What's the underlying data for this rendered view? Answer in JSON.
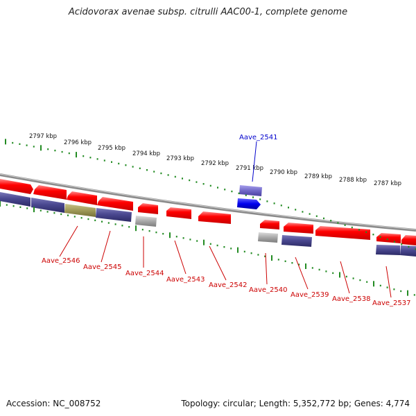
{
  "title": "Acidovorax avenae subsp. citrulli AAC00-1, complete genome",
  "footer": {
    "accession": "Accession: NC_008752",
    "topology": "Topology: circular; Length: 5,352,772 bp; Genes: 4,774"
  },
  "scale": {
    "unit": "kbp",
    "ticks": [
      "2797 kbp",
      "2796 kbp",
      "2795 kbp",
      "2794 kbp",
      "2793 kbp",
      "2792 kbp",
      "2791 kbp",
      "2790 kbp",
      "2789 kbp",
      "2788 kbp",
      "2787 kbp"
    ]
  },
  "gene_labels": [
    "Aave_2546",
    "Aave_2545",
    "Aave_2544",
    "Aave_2543",
    "Aave_2542",
    "Aave_2541",
    "Aave_2540",
    "Aave_2539",
    "Aave_2538",
    "Aave_2537"
  ],
  "colors": {
    "cds": "#ff0000",
    "rna_blue": "#0000ee",
    "feature_purple": "#4a4890",
    "feature_lavender": "#7068c8",
    "feature_olive": "#a09a58",
    "feature_gray": "#a8a8a8",
    "tick_green": "#228b22",
    "backbone": "#8a8a8a",
    "label_red": "#cc0000",
    "label_blue": "#0000cc"
  }
}
